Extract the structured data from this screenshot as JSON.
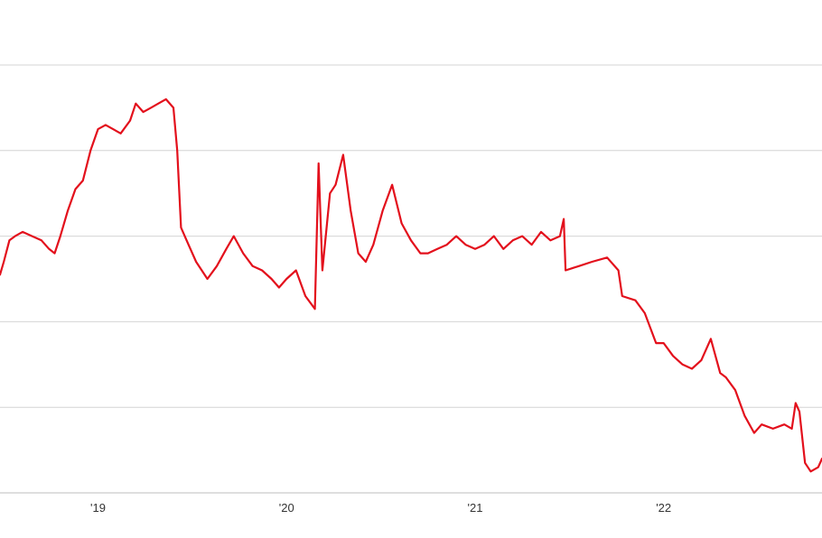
{
  "chart_data": {
    "type": "line",
    "title": "",
    "xlabel": "",
    "ylabel": "",
    "grid": true,
    "legend": "none",
    "x_ticks": [
      {
        "label": "'19",
        "x": 2019.0
      },
      {
        "label": "'20",
        "x": 2020.0
      },
      {
        "label": "'21",
        "x": 2021.0
      },
      {
        "label": "'22",
        "x": 2022.0
      }
    ],
    "xlim": [
      2018.48,
      2022.84
    ],
    "ylim": [
      0,
      5
    ],
    "y_gridlines": [
      0,
      1,
      2,
      3,
      4,
      5
    ],
    "series": [
      {
        "color": "#e3101c",
        "x": [
          2018.48,
          2018.5,
          2018.53,
          2018.56,
          2018.6,
          2018.65,
          2018.7,
          2018.74,
          2018.77,
          2018.8,
          2018.84,
          2018.88,
          2018.92,
          2018.96,
          2019.0,
          2019.04,
          2019.08,
          2019.12,
          2019.17,
          2019.2,
          2019.24,
          2019.28,
          2019.32,
          2019.36,
          2019.4,
          2019.42,
          2019.44,
          2019.47,
          2019.52,
          2019.58,
          2019.63,
          2019.68,
          2019.72,
          2019.77,
          2019.82,
          2019.87,
          2019.92,
          2019.96,
          2020.0,
          2020.05,
          2020.1,
          2020.15,
          2020.17,
          2020.19,
          2020.21,
          2020.23,
          2020.26,
          2020.3,
          2020.34,
          2020.38,
          2020.42,
          2020.46,
          2020.51,
          2020.56,
          2020.61,
          2020.66,
          2020.71,
          2020.75,
          2020.8,
          2020.85,
          2020.9,
          2020.95,
          2021.0,
          2021.05,
          2021.1,
          2021.15,
          2021.2,
          2021.25,
          2021.3,
          2021.35,
          2021.4,
          2021.45,
          2021.47,
          2021.48,
          2021.55,
          2021.62,
          2021.7,
          2021.76,
          2021.78,
          2021.85,
          2021.9,
          2021.96,
          2022.0,
          2022.05,
          2022.1,
          2022.15,
          2022.2,
          2022.25,
          2022.3,
          2022.33,
          2022.38,
          2022.43,
          2022.48,
          2022.52,
          2022.58,
          2022.64,
          2022.68,
          2022.7,
          2022.72,
          2022.75,
          2022.78,
          2022.82,
          2022.84
        ],
        "y": [
          2.55,
          2.7,
          2.95,
          3.0,
          3.05,
          3.0,
          2.95,
          2.85,
          2.8,
          3.0,
          3.3,
          3.55,
          3.65,
          4.0,
          4.25,
          4.3,
          4.25,
          4.2,
          4.35,
          4.55,
          4.45,
          4.5,
          4.55,
          4.6,
          4.5,
          4.0,
          3.1,
          2.95,
          2.7,
          2.5,
          2.65,
          2.85,
          3.0,
          2.8,
          2.65,
          2.6,
          2.5,
          2.4,
          2.5,
          2.6,
          2.3,
          2.15,
          3.85,
          2.6,
          3.05,
          3.5,
          3.6,
          3.95,
          3.3,
          2.8,
          2.7,
          2.9,
          3.3,
          3.6,
          3.15,
          2.95,
          2.8,
          2.8,
          2.85,
          2.9,
          3.0,
          2.9,
          2.85,
          2.9,
          3.0,
          2.85,
          2.95,
          3.0,
          2.9,
          3.05,
          2.95,
          3.0,
          3.2,
          2.6,
          2.65,
          2.7,
          2.75,
          2.6,
          2.3,
          2.25,
          2.1,
          1.75,
          1.75,
          1.6,
          1.5,
          1.45,
          1.55,
          1.8,
          1.4,
          1.35,
          1.2,
          0.9,
          0.7,
          0.8,
          0.75,
          0.8,
          0.75,
          1.05,
          0.95,
          0.35,
          0.25,
          0.3,
          0.4
        ]
      }
    ]
  }
}
